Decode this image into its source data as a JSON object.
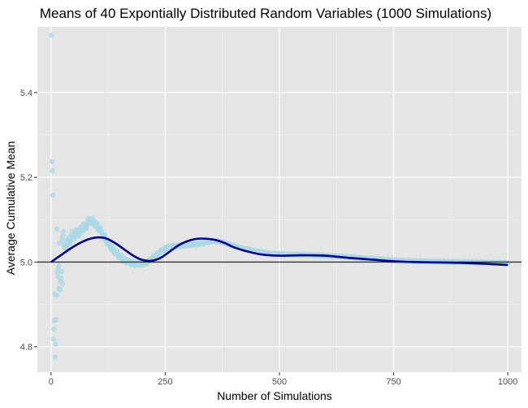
{
  "chart_data": {
    "type": "scatter",
    "title": "Means of 40 Expontially Distributed Random Variables (1000 Simulations)",
    "xlabel": "Number of Simulations",
    "ylabel": "Average Cumulative Mean",
    "xlim": [
      -30,
      1030
    ],
    "ylim": [
      4.74,
      5.555
    ],
    "x_ticks": [
      0,
      250,
      500,
      750,
      1000
    ],
    "x_tick_labels": [
      "0",
      "250",
      "500",
      "750",
      "1000"
    ],
    "y_ticks": [
      4.8,
      5.0,
      5.2,
      5.4
    ],
    "y_tick_labels": [
      "4.8",
      "5.0",
      "5.2",
      "5.4"
    ],
    "grid": true,
    "background": "#e5e5e5",
    "point_color": "#add8e6",
    "smooth_color": "#00008b",
    "hline_color": "#333333",
    "hline": 5.0,
    "scatter_early": {
      "x": [
        1,
        2,
        3,
        4,
        5,
        6,
        7,
        8,
        9,
        10,
        11,
        12,
        13,
        14,
        15,
        16,
        17,
        18,
        19,
        20,
        21,
        22,
        23,
        24,
        25,
        26,
        27,
        28,
        29,
        30
      ],
      "y": [
        5.535,
        5.237,
        5.215,
        5.158,
        4.818,
        4.842,
        4.862,
        4.924,
        4.776,
        4.806,
        4.864,
        4.922,
        5.078,
        4.975,
        4.985,
        4.965,
        4.938,
        4.992,
        5.045,
        4.935,
        4.955,
        4.962,
        4.978,
        5.055,
        4.948,
        5.062,
        5.072,
        5.04,
        5.05,
        5.035
      ]
    },
    "scatter_anchors": {
      "x": [
        30,
        45,
        60,
        75,
        85,
        95,
        105,
        115,
        125,
        135,
        145,
        160,
        175,
        190,
        205,
        215,
        225,
        240,
        255,
        275,
        295,
        315,
        335,
        355,
        375,
        395,
        420,
        450,
        480,
        520,
        560,
        600,
        650,
        700,
        750,
        800,
        850,
        900,
        950,
        1000
      ],
      "y": [
        5.035,
        5.06,
        5.07,
        5.085,
        5.1,
        5.092,
        5.08,
        5.06,
        5.045,
        5.03,
        5.018,
        5.005,
        4.998,
        4.996,
        4.997,
        5.002,
        5.012,
        5.025,
        5.035,
        5.038,
        5.04,
        5.042,
        5.045,
        5.05,
        5.047,
        5.04,
        5.032,
        5.025,
        5.02,
        5.018,
        5.017,
        5.015,
        5.012,
        5.008,
        5.004,
        5.002,
        5.001,
        5.0,
        4.999,
        4.998
      ]
    },
    "smooth_line": {
      "x": [
        0,
        20,
        40,
        60,
        80,
        100,
        120,
        140,
        160,
        180,
        200,
        220,
        240,
        260,
        280,
        300,
        320,
        340,
        360,
        380,
        400,
        430,
        460,
        500,
        550,
        600,
        650,
        700,
        750,
        800,
        850,
        900,
        950,
        1000
      ],
      "y": [
        5.0,
        5.015,
        5.03,
        5.043,
        5.053,
        5.058,
        5.056,
        5.045,
        5.03,
        5.015,
        5.005,
        5.003,
        5.01,
        5.025,
        5.04,
        5.05,
        5.055,
        5.055,
        5.052,
        5.045,
        5.035,
        5.025,
        5.018,
        5.015,
        5.016,
        5.015,
        5.01,
        5.006,
        5.002,
        5.0,
        4.999,
        4.998,
        4.996,
        4.993
      ]
    }
  }
}
